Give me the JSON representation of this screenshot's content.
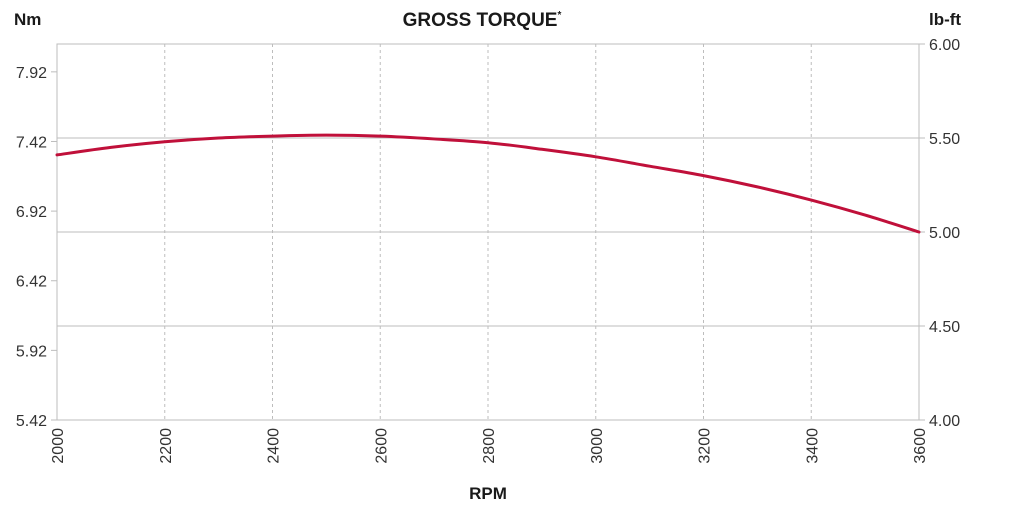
{
  "chart_data": {
    "type": "line",
    "title": "GROSS TORQUE",
    "title_mark": "*",
    "xlabel": "RPM",
    "ylabel_left": "Nm",
    "ylabel_right": "lb-ft",
    "xlim": [
      2000,
      3600
    ],
    "x_ticks": [
      "2000",
      "2200",
      "2400",
      "2600",
      "2800",
      "3000",
      "3200",
      "3400",
      "3600"
    ],
    "ylim_left": [
      5.42,
      8.12
    ],
    "y_ticks_left": [
      "5.42",
      "5.92",
      "6.42",
      "6.92",
      "7.42",
      "7.92"
    ],
    "ylim_right": [
      4.0,
      6.0
    ],
    "y_ticks_right": [
      "4.00",
      "4.50",
      "5.00",
      "5.50",
      "6.00"
    ],
    "grid": true,
    "line_color": "#c0103a",
    "series": [
      {
        "axis": "right",
        "x": [
          2000,
          2100,
          2200,
          2300,
          2400,
          2500,
          2600,
          2700,
          2800,
          2900,
          3000,
          3100,
          3200,
          3300,
          3400,
          3500,
          3600
        ],
        "y": [
          5.41,
          5.45,
          5.48,
          5.5,
          5.51,
          5.515,
          5.51,
          5.495,
          5.475,
          5.44,
          5.4,
          5.35,
          5.3,
          5.24,
          5.17,
          5.09,
          5.0
        ]
      }
    ]
  }
}
